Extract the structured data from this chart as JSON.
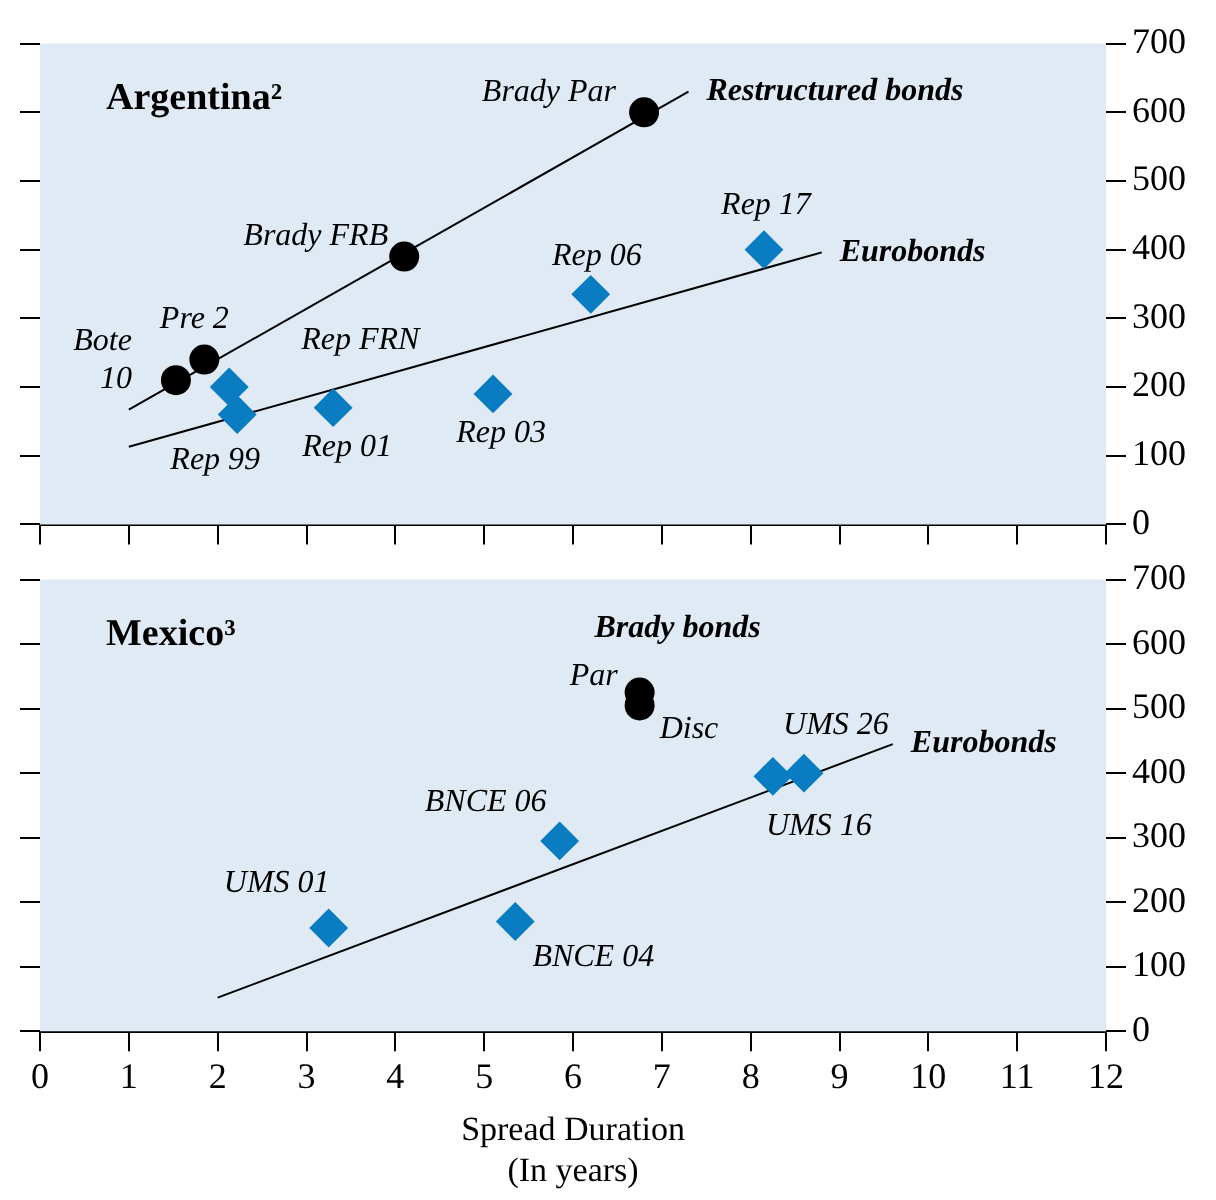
{
  "chart_data": [
    {
      "type": "scatter",
      "title": "Argentina²",
      "xlim": [
        0,
        12
      ],
      "xticks": [
        0,
        1,
        2,
        3,
        4,
        5,
        6,
        7,
        8,
        9,
        10,
        11,
        12
      ],
      "ylim": [
        0,
        700
      ],
      "yticks": [
        0,
        100,
        200,
        300,
        400,
        500,
        600,
        700
      ],
      "tick_labels": "y",
      "legend": false,
      "grid": false,
      "series": [
        {
          "type": "scatter",
          "marker": "circle",
          "color": "#000000",
          "x": [
            1.53,
            1.85,
            4.1,
            6.8
          ],
          "values": [
            210,
            240,
            390,
            600
          ]
        },
        {
          "type": "line",
          "marker": "none",
          "name": "Restructured bonds",
          "color": "#000000",
          "x": [
            1.0,
            7.3
          ],
          "values": [
            167,
            630
          ]
        },
        {
          "type": "scatter",
          "marker": "diamond",
          "color": "#0a7cc1",
          "x": [
            2.13,
            2.22,
            3.3,
            5.1,
            6.2,
            8.15
          ],
          "values": [
            200,
            160,
            170,
            190,
            335,
            400
          ]
        },
        {
          "type": "line",
          "marker": "none",
          "name": "Eurobonds",
          "color": "#000000",
          "x": [
            1.0,
            8.8
          ],
          "values": [
            113,
            396
          ]
        }
      ],
      "annotations": [
        {
          "text": "Brady Par",
          "x": 6.8,
          "y": 600
        },
        {
          "text": "Brady FRB",
          "x": 4.1,
          "y": 390
        },
        {
          "text": "Pre 2",
          "x": 1.85,
          "y": 240
        },
        {
          "text": "Bote 10",
          "x": 1.53,
          "y": 210
        },
        {
          "text": "Rep FRN",
          "x": 2.13,
          "y": 200
        },
        {
          "text": "Rep 99",
          "x": 2.22,
          "y": 160
        },
        {
          "text": "Rep 01",
          "x": 3.3,
          "y": 170
        },
        {
          "text": "Rep 03",
          "x": 5.1,
          "y": 190
        },
        {
          "text": "Rep 06",
          "x": 6.2,
          "y": 335
        },
        {
          "text": "Rep 17",
          "x": 8.15,
          "y": 400
        }
      ]
    },
    {
      "type": "scatter",
      "title": "Mexico³",
      "xlabel": "Spread Duration\n(In years)",
      "xlim": [
        0,
        12
      ],
      "xticks": [
        0,
        1,
        2,
        3,
        4,
        5,
        6,
        7,
        8,
        9,
        10,
        11,
        12
      ],
      "ylim": [
        0,
        700
      ],
      "yticks": [
        0,
        100,
        200,
        300,
        400,
        500,
        600,
        700
      ],
      "legend": false,
      "grid": false,
      "series": [
        {
          "type": "scatter",
          "marker": "circle",
          "name": "Brady bonds",
          "color": "#000000",
          "x": [
            6.75,
            6.75
          ],
          "values": [
            525,
            505
          ]
        },
        {
          "type": "scatter",
          "marker": "diamond",
          "color": "#0a7cc1",
          "x": [
            3.25,
            5.35,
            5.85,
            8.25,
            8.6
          ],
          "values": [
            160,
            170,
            295,
            395,
            400
          ]
        },
        {
          "type": "line",
          "marker": "none",
          "name": "Eurobonds",
          "color": "#000000",
          "x": [
            2.0,
            9.6
          ],
          "values": [
            52,
            445
          ]
        }
      ],
      "annotations": [
        {
          "text": "Par",
          "x": 6.75,
          "y": 525
        },
        {
          "text": "Disc",
          "x": 6.75,
          "y": 505
        },
        {
          "text": "UMS 01",
          "x": 3.25,
          "y": 160
        },
        {
          "text": "BNCE 06",
          "x": 5.85,
          "y": 295
        },
        {
          "text": "BNCE 04",
          "x": 5.35,
          "y": 170
        },
        {
          "text": "UMS 16",
          "x": 8.25,
          "y": 395
        },
        {
          "text": "UMS 26",
          "x": 8.6,
          "y": 400
        }
      ]
    }
  ]
}
